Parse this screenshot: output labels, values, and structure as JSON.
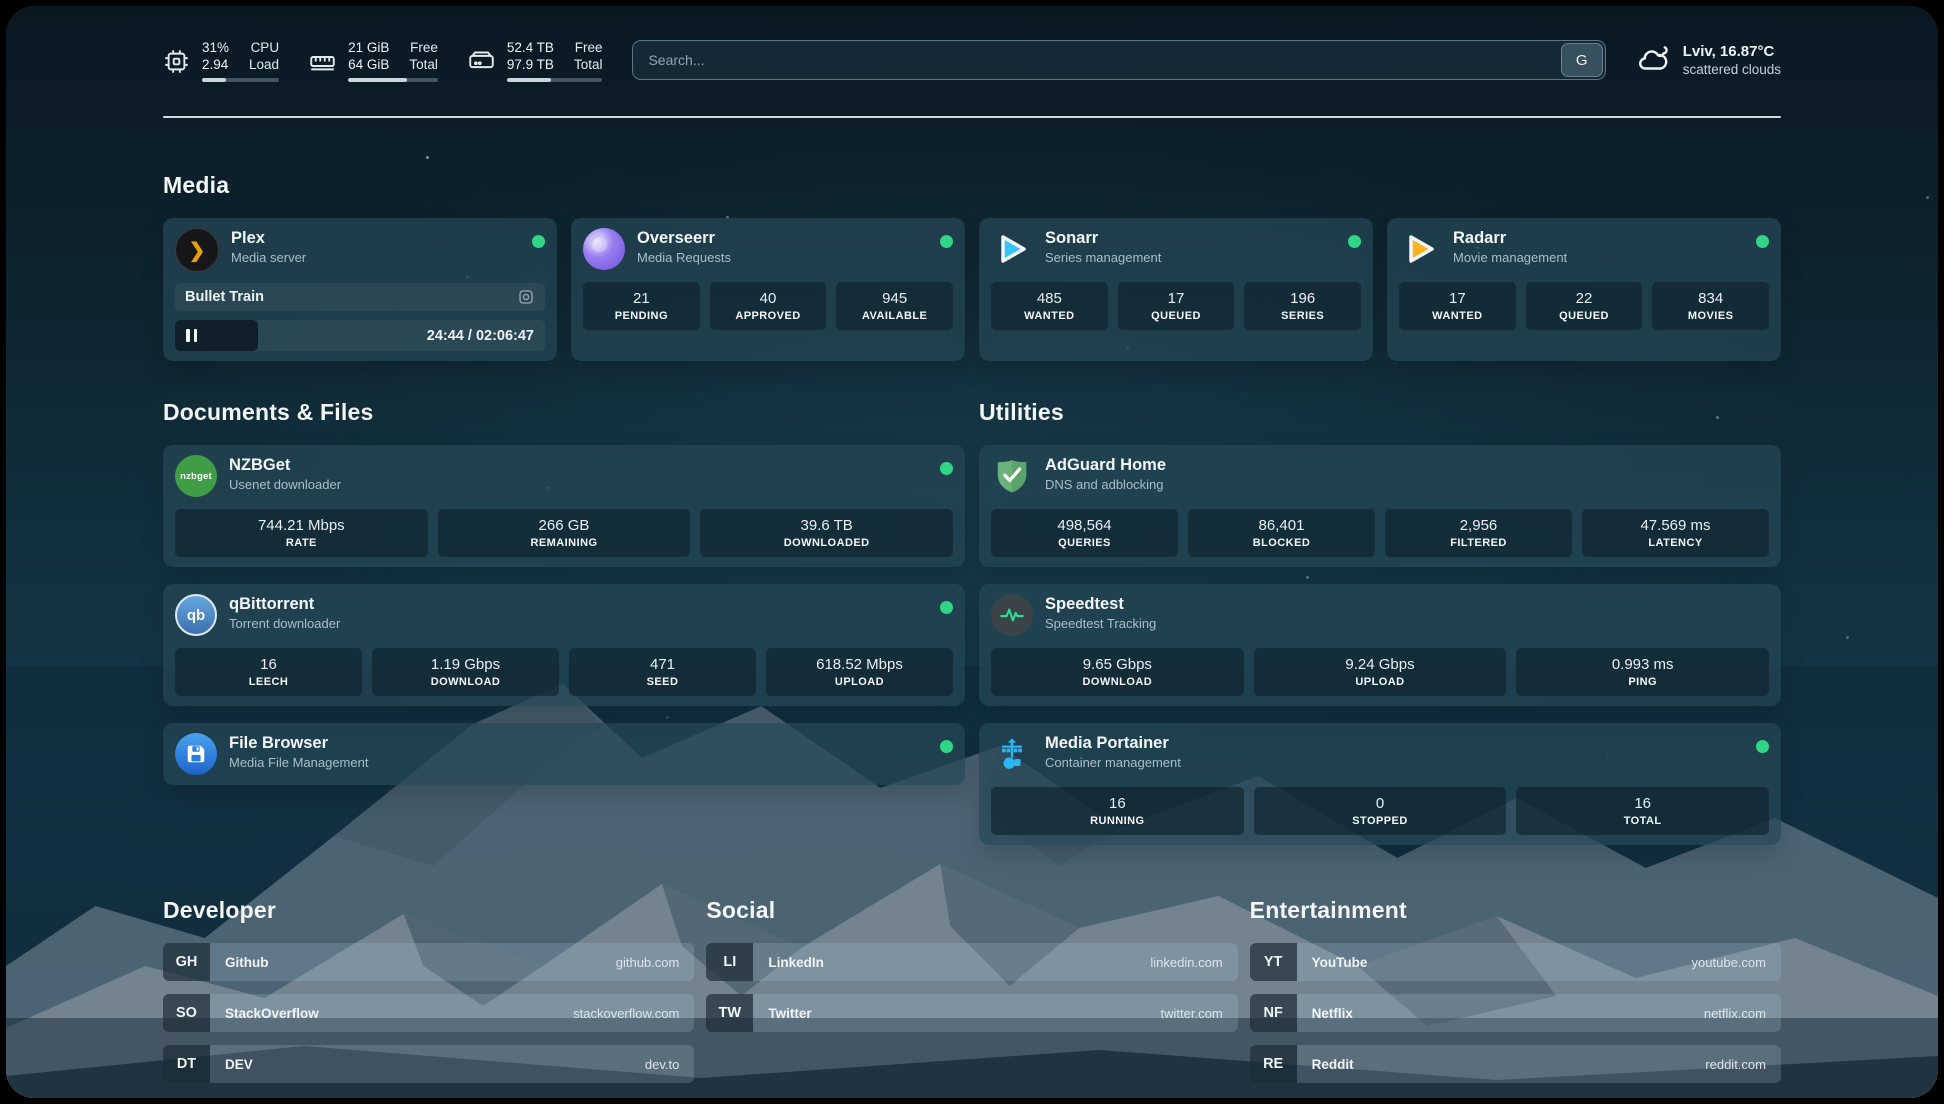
{
  "header": {
    "stats": [
      {
        "icon": "cpu-icon",
        "rows": [
          {
            "value": "31%",
            "label": "CPU"
          },
          {
            "value": "2.94",
            "label": "Load"
          }
        ],
        "progress": 31
      },
      {
        "icon": "memory-icon",
        "rows": [
          {
            "value": "21 GiB",
            "label": "Free"
          },
          {
            "value": "64 GiB",
            "label": "Total"
          }
        ],
        "progress": 66
      },
      {
        "icon": "disk-icon",
        "rows": [
          {
            "value": "52.4 TB",
            "label": "Free"
          },
          {
            "value": "97.9 TB",
            "label": "Total"
          }
        ],
        "progress": 46
      }
    ],
    "search": {
      "placeholder": "Search...",
      "button_label": "G"
    },
    "weather": {
      "location": "Lviv, 16.87°C",
      "condition": "scattered clouds"
    }
  },
  "sections": {
    "media": {
      "title": "Media",
      "plex": {
        "name": "Plex",
        "desc": "Media server",
        "icon_text": "❯",
        "now_playing": "Bullet Train",
        "time": "24:44 / 02:06:47",
        "progress": 19.5
      },
      "overseerr": {
        "name": "Overseerr",
        "desc": "Media Requests",
        "stats": [
          {
            "value": "21",
            "label": "PENDING"
          },
          {
            "value": "40",
            "label": "APPROVED"
          },
          {
            "value": "945",
            "label": "AVAILABLE"
          }
        ]
      },
      "sonarr": {
        "name": "Sonarr",
        "desc": "Series management",
        "stats": [
          {
            "value": "485",
            "label": "WANTED"
          },
          {
            "value": "17",
            "label": "QUEUED"
          },
          {
            "value": "196",
            "label": "SERIES"
          }
        ]
      },
      "radarr": {
        "name": "Radarr",
        "desc": "Movie management",
        "stats": [
          {
            "value": "17",
            "label": "WANTED"
          },
          {
            "value": "22",
            "label": "QUEUED"
          },
          {
            "value": "834",
            "label": "MOVIES"
          }
        ]
      }
    },
    "documents": {
      "title": "Documents & Files",
      "nzbget": {
        "name": "NZBGet",
        "desc": "Usenet downloader",
        "icon_text": "nzbget",
        "stats": [
          {
            "value": "744.21 Mbps",
            "label": "RATE"
          },
          {
            "value": "266 GB",
            "label": "REMAINING"
          },
          {
            "value": "39.6 TB",
            "label": "DOWNLOADED"
          }
        ]
      },
      "qbittorrent": {
        "name": "qBittorrent",
        "desc": "Torrent downloader",
        "icon_text": "qb",
        "stats": [
          {
            "value": "16",
            "label": "LEECH"
          },
          {
            "value": "1.19 Gbps",
            "label": "DOWNLOAD"
          },
          {
            "value": "471",
            "label": "SEED"
          },
          {
            "value": "618.52 Mbps",
            "label": "UPLOAD"
          }
        ]
      },
      "filebrowser": {
        "name": "File Browser",
        "desc": "Media File Management"
      }
    },
    "utilities": {
      "title": "Utilities",
      "adguard": {
        "name": "AdGuard Home",
        "desc": "DNS and adblocking",
        "stats": [
          {
            "value": "498,564",
            "label": "QUERIES"
          },
          {
            "value": "86,401",
            "label": "BLOCKED"
          },
          {
            "value": "2,956",
            "label": "FILTERED"
          },
          {
            "value": "47.569 ms",
            "label": "LATENCY"
          }
        ]
      },
      "speedtest": {
        "name": "Speedtest",
        "desc": "Speedtest Tracking",
        "stats": [
          {
            "value": "9.65 Gbps",
            "label": "DOWNLOAD"
          },
          {
            "value": "9.24 Gbps",
            "label": "UPLOAD"
          },
          {
            "value": "0.993 ms",
            "label": "PING"
          }
        ]
      },
      "portainer": {
        "name": "Media Portainer",
        "desc": "Container management",
        "stats": [
          {
            "value": "16",
            "label": "RUNNING"
          },
          {
            "value": "0",
            "label": "STOPPED"
          },
          {
            "value": "16",
            "label": "TOTAL"
          }
        ]
      }
    }
  },
  "bookmarks": [
    {
      "title": "Developer",
      "items": [
        {
          "abbr": "GH",
          "name": "Github",
          "url": "github.com"
        },
        {
          "abbr": "SO",
          "name": "StackOverflow",
          "url": "stackoverflow.com"
        },
        {
          "abbr": "DT",
          "name": "DEV",
          "url": "dev.to"
        }
      ]
    },
    {
      "title": "Social",
      "items": [
        {
          "abbr": "LI",
          "name": "LinkedIn",
          "url": "linkedin.com"
        },
        {
          "abbr": "TW",
          "name": "Twitter",
          "url": "twitter.com"
        }
      ]
    },
    {
      "title": "Entertainment",
      "items": [
        {
          "abbr": "YT",
          "name": "YouTube",
          "url": "youtube.com"
        },
        {
          "abbr": "NF",
          "name": "Netflix",
          "url": "netflix.com"
        },
        {
          "abbr": "RE",
          "name": "Reddit",
          "url": "reddit.com"
        }
      ]
    }
  ],
  "colors": {
    "status_online": "#31d587",
    "plex_gold": "#e5a00d",
    "sonarr_blue": "#35c5f4",
    "radarr_orange": "#ffb320",
    "nzbget_green": "#3f9e45",
    "qbittorrent_blue": "#4f8fcc",
    "filebrowser_blue": "#2a7de1",
    "adguard_green": "#67b279",
    "speedtest_pulse": "#2fe08c",
    "portainer_blue": "#29b6f6"
  }
}
